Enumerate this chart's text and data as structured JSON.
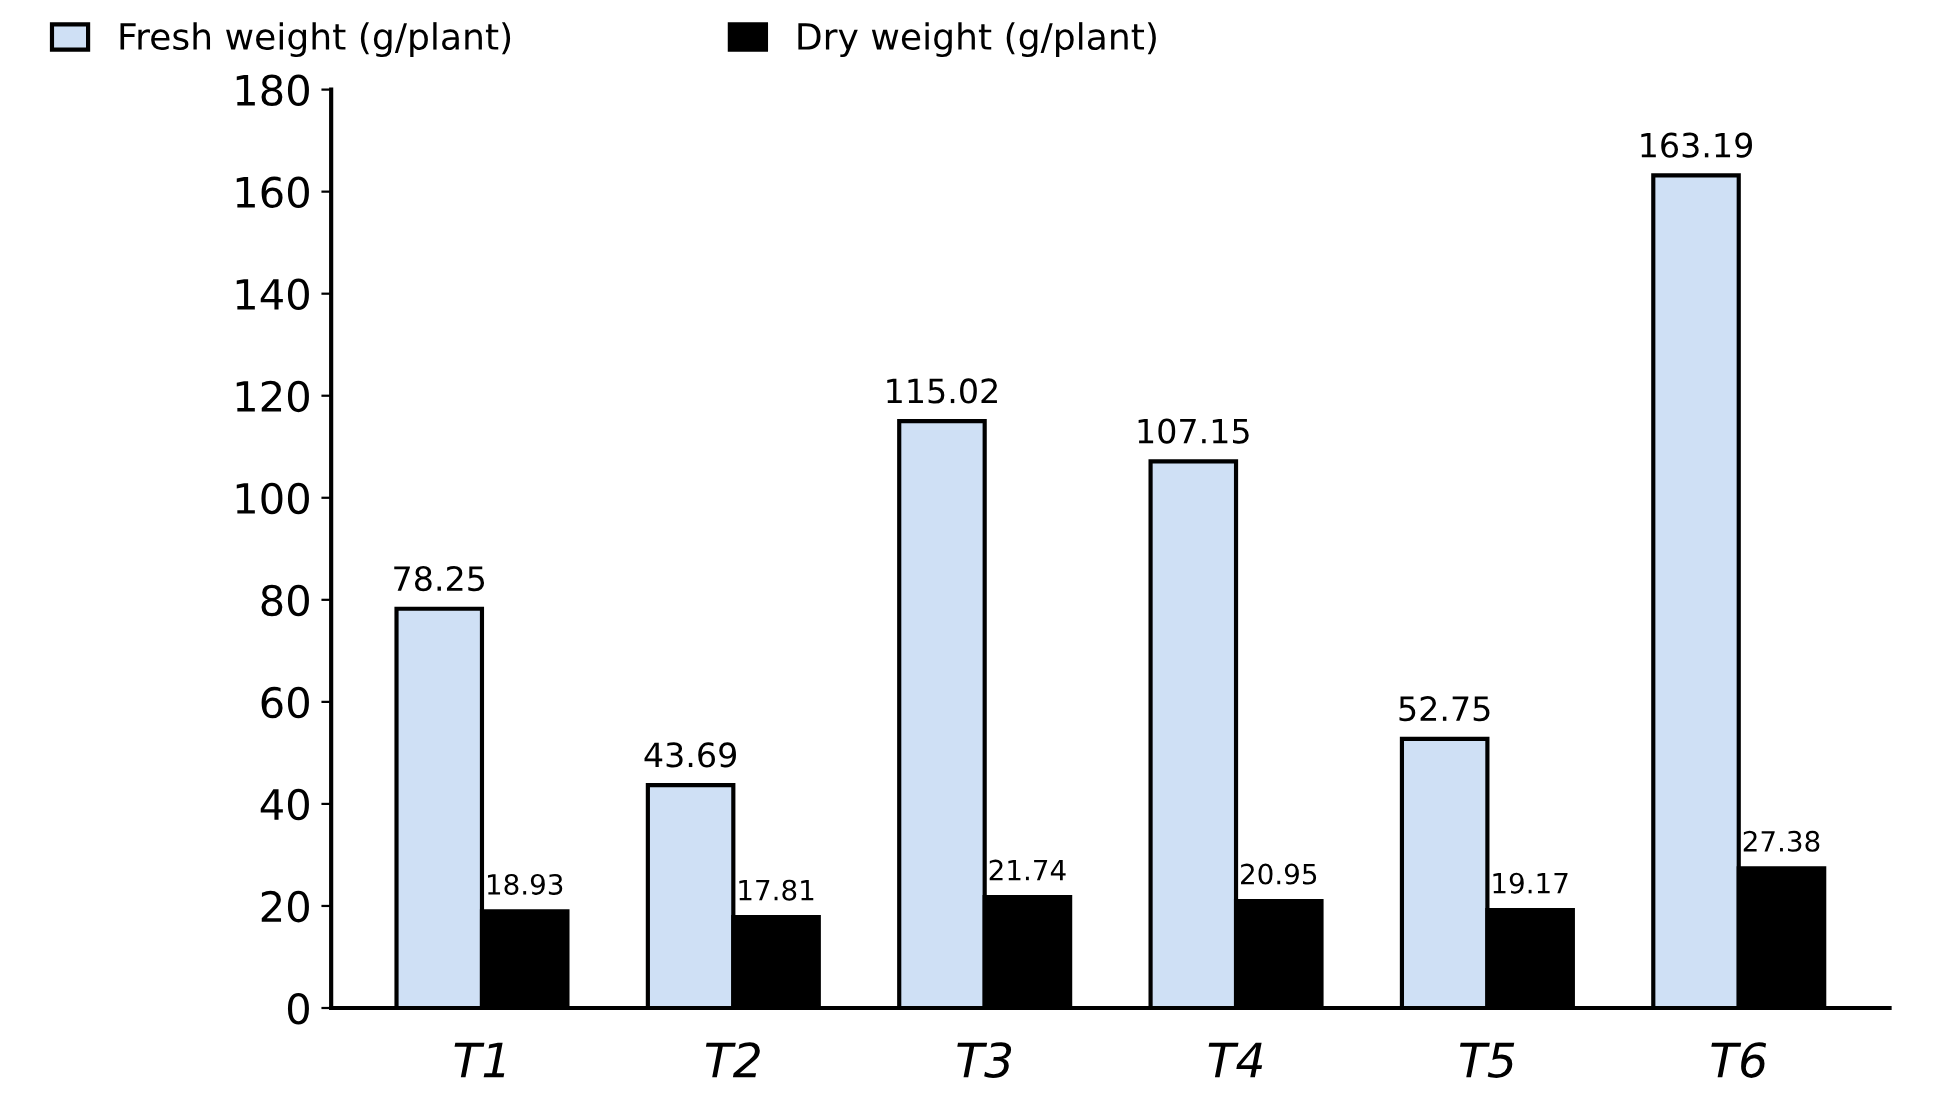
{
  "chart_data": {
    "type": "bar",
    "categories": [
      "T1",
      "T2",
      "T3",
      "T4",
      "T5",
      "T6"
    ],
    "series": [
      {
        "name": "Fresh weight (g/plant)",
        "color": "#cfe0f5",
        "values": [
          78.25,
          43.69,
          115.02,
          107.15,
          52.75,
          163.19
        ]
      },
      {
        "name": "Dry weight (g/plant)",
        "color": "#000000",
        "values": [
          18.93,
          17.81,
          21.74,
          20.95,
          19.17,
          27.38
        ]
      }
    ],
    "ylim": [
      0,
      180
    ],
    "yticks": [
      0,
      20,
      40,
      60,
      80,
      100,
      120,
      140,
      160,
      180
    ],
    "grid": false,
    "legend": "top left",
    "data_labels": true
  }
}
